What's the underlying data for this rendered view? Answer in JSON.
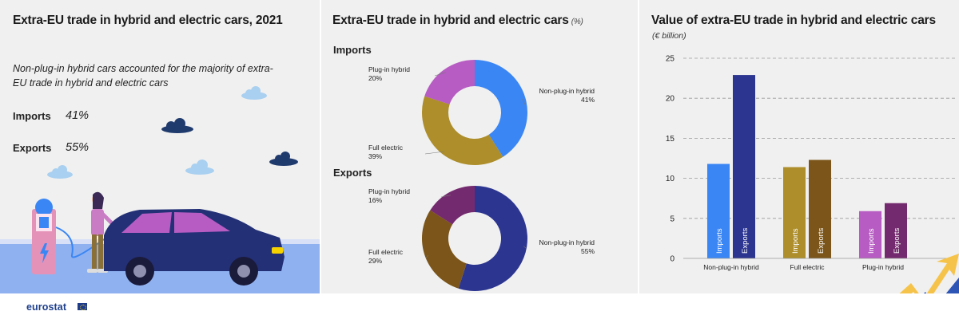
{
  "left": {
    "title": "Extra-EU trade in hybrid and electric cars, 2021",
    "subtitle": "Non-plug-in hybrid cars accounted for the majority of extra-EU trade in hybrid and electric cars",
    "kpis": [
      {
        "label": "Imports",
        "value": "41%"
      },
      {
        "label": "Exports",
        "value": "55%"
      }
    ]
  },
  "middle": {
    "title": "Extra-EU trade in hybrid and electric cars",
    "unit": "(%)"
  },
  "right": {
    "title": "Value of extra-EU trade in hybrid and electric cars",
    "unit": "(€ billion)"
  },
  "colors": {
    "imports_nphev": "#3a86f4",
    "exports_nphev": "#2c3590",
    "imports_full": "#ad8e2b",
    "exports_full": "#7b5519",
    "imports_plugin": "#b65cc2",
    "exports_plugin": "#742a6e"
  },
  "footer": {
    "logo": "eurostat"
  },
  "chart_data": [
    {
      "type": "pie",
      "title": "Imports",
      "categories": [
        "Non-plug-in hybrid",
        "Full electric",
        "Plug-in hybrid"
      ],
      "values": [
        41,
        39,
        20
      ],
      "labels": [
        "41%",
        "39%",
        "20%"
      ]
    },
    {
      "type": "pie",
      "title": "Exports",
      "categories": [
        "Non-plug-in hybrid",
        "Full electric",
        "Plug-in hybrid"
      ],
      "values": [
        55,
        29,
        16
      ],
      "labels": [
        "55%",
        "29%",
        "16%"
      ]
    },
    {
      "type": "bar",
      "categories": [
        "Non-plug-in hybrid",
        "Full electric",
        "Plug-in hybrid"
      ],
      "series": [
        {
          "name": "Imports",
          "values": [
            11.8,
            11.4,
            5.9
          ]
        },
        {
          "name": "Exports",
          "values": [
            22.9,
            12.3,
            6.9
          ]
        }
      ],
      "ylim": [
        0,
        25
      ],
      "yticks": [
        "0",
        "5",
        "10",
        "15",
        "20",
        "25"
      ],
      "grid": true
    }
  ]
}
